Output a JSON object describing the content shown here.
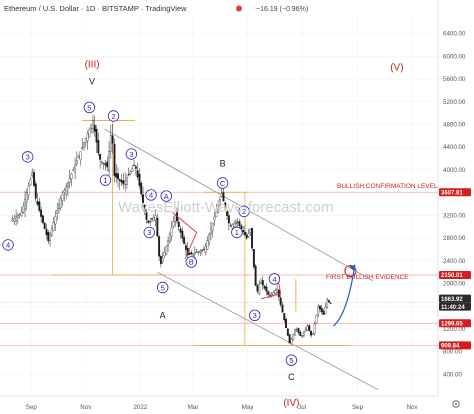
{
  "header": {
    "title": "Ethereum / U.S. Dollar · 1D · BITSTAMP · TradingView",
    "change": "−16.19 (−0.96%)"
  },
  "watermark": "WavesElliott-Wave-forecast.com",
  "colors": {
    "up": "#3a3a3a",
    "down": "#1a1a1a",
    "wave_blue": "#2a2aa8",
    "level_red": "#d41d1d",
    "channel": "#888888",
    "fib_orange": "#f0a33a",
    "arrow_blue": "#1e5fd6"
  },
  "chart_data": {
    "type": "candlestick",
    "title": "Ethereum / U.S. Dollar · 1D · BITSTAMP · TradingView",
    "y_axis_ticks": [
      6400,
      6000,
      5600,
      5200,
      4800,
      4400,
      4000,
      3600,
      3200,
      2800,
      2400,
      2000,
      1600,
      1200,
      800,
      400
    ],
    "x_axis_ticks": [
      "Sep",
      "Nov",
      "2022",
      "Mar",
      "May",
      "Jul",
      "Sep",
      "Nov"
    ],
    "ylim": [
      0,
      6700
    ],
    "price_labels": [
      {
        "value": "3607.81",
        "price": 3607.81,
        "style": "red-solid"
      },
      {
        "value": "2150.01",
        "price": 2150.01,
        "style": "red-solid"
      },
      {
        "value": "1663.92",
        "price": 1663.92,
        "style": "dark"
      },
      {
        "value": "11:40:24",
        "price": 1663.92,
        "style": "dark-time"
      },
      {
        "value": "1299.65",
        "price": 1299.65,
        "style": "red-solid"
      },
      {
        "value": "909.84",
        "price": 909.84,
        "style": "red-solid"
      }
    ],
    "levels": [
      {
        "label": "BULLISH CONFIRMATION LEVEL",
        "price": 3607.81
      },
      {
        "label": "FIRST BULLISH EVIDENCE",
        "price": 2150.01
      }
    ],
    "price_path": [
      {
        "date": "2021-08-10",
        "price": 3100
      },
      {
        "date": "2021-08-22",
        "price": 3250
      },
      {
        "date": "2021-09-03",
        "price": 3950
      },
      {
        "date": "2021-09-07",
        "price": 3500
      },
      {
        "date": "2021-09-21",
        "price": 2750
      },
      {
        "date": "2021-10-05",
        "price": 3500
      },
      {
        "date": "2021-10-15",
        "price": 3850
      },
      {
        "date": "2021-10-29",
        "price": 4400
      },
      {
        "date": "2021-11-10",
        "price": 4870
      },
      {
        "date": "2021-11-17",
        "price": 4200
      },
      {
        "date": "2021-11-26",
        "price": 4050
      },
      {
        "date": "2021-12-01",
        "price": 4750
      },
      {
        "date": "2021-12-04",
        "price": 3900
      },
      {
        "date": "2021-12-14",
        "price": 3750
      },
      {
        "date": "2021-12-27",
        "price": 4100
      },
      {
        "date": "2022-01-10",
        "price": 3050
      },
      {
        "date": "2022-01-19",
        "price": 3200
      },
      {
        "date": "2022-01-24",
        "price": 2300
      },
      {
        "date": "2022-02-01",
        "price": 2700
      },
      {
        "date": "2022-02-10",
        "price": 3200
      },
      {
        "date": "2022-02-24",
        "price": 2500
      },
      {
        "date": "2022-03-15",
        "price": 2600
      },
      {
        "date": "2022-04-03",
        "price": 3580
      },
      {
        "date": "2022-04-12",
        "price": 3000
      },
      {
        "date": "2022-04-20",
        "price": 3100
      },
      {
        "date": "2022-05-01",
        "price": 2800
      },
      {
        "date": "2022-05-05",
        "price": 2950
      },
      {
        "date": "2022-05-12",
        "price": 1800
      },
      {
        "date": "2022-05-16",
        "price": 2050
      },
      {
        "date": "2022-05-26",
        "price": 1780
      },
      {
        "date": "2022-06-04",
        "price": 1900
      },
      {
        "date": "2022-06-18",
        "price": 950
      },
      {
        "date": "2022-06-25",
        "price": 1220
      },
      {
        "date": "2022-07-01",
        "price": 1050
      },
      {
        "date": "2022-07-08",
        "price": 1250
      },
      {
        "date": "2022-07-13",
        "price": 1050
      },
      {
        "date": "2022-07-20",
        "price": 1600
      },
      {
        "date": "2022-07-26",
        "price": 1450
      },
      {
        "date": "2022-07-30",
        "price": 1720
      },
      {
        "date": "2022-08-02",
        "price": 1650
      }
    ],
    "wave_labels": [
      {
        "text": "(III)",
        "date": "2021-11-08",
        "price": 5800,
        "style": "red"
      },
      {
        "text": "V",
        "date": "2021-11-08",
        "price": 5500,
        "style": "black"
      },
      {
        "text": "5",
        "date": "2021-11-05",
        "price": 5100,
        "style": "circle"
      },
      {
        "text": "2",
        "date": "2021-12-02",
        "price": 4950,
        "style": "circle"
      },
      {
        "text": "3",
        "date": "2021-08-28",
        "price": 4230,
        "style": "circle"
      },
      {
        "text": "1",
        "date": "2021-11-23",
        "price": 3820,
        "style": "circle"
      },
      {
        "text": "3",
        "date": "2021-12-22",
        "price": 4280,
        "style": "circle"
      },
      {
        "text": "4",
        "date": "2021-08-06",
        "price": 2680,
        "style": "circle"
      },
      {
        "text": "4",
        "date": "2022-01-13",
        "price": 3560,
        "style": "circle"
      },
      {
        "text": "A",
        "date": "2022-01-30",
        "price": 3540,
        "style": "circle"
      },
      {
        "text": "3",
        "date": "2022-01-11",
        "price": 2900,
        "style": "circle"
      },
      {
        "text": "5",
        "date": "2022-01-26",
        "price": 1930,
        "style": "circle"
      },
      {
        "text": "A",
        "date": "2022-01-26",
        "price": 1380,
        "style": "black"
      },
      {
        "text": "B",
        "date": "2022-02-27",
        "price": 2380,
        "style": "circle"
      },
      {
        "text": "C",
        "date": "2022-04-03",
        "price": 3770,
        "style": "circle"
      },
      {
        "text": "B",
        "date": "2022-04-03",
        "price": 4060,
        "style": "black"
      },
      {
        "text": "2",
        "date": "2022-04-27",
        "price": 3270,
        "style": "circle"
      },
      {
        "text": "1",
        "date": "2022-04-19",
        "price": 2900,
        "style": "circle"
      },
      {
        "text": "4",
        "date": "2022-05-31",
        "price": 2080,
        "style": "circle"
      },
      {
        "text": "3",
        "date": "2022-05-09",
        "price": 1440,
        "style": "circle"
      },
      {
        "text": "5",
        "date": "2022-06-19",
        "price": 650,
        "style": "circle"
      },
      {
        "text": "C",
        "date": "2022-06-19",
        "price": 300,
        "style": "black"
      },
      {
        "text": "(IV)",
        "date": "2022-06-19",
        "price": -160,
        "style": "red"
      },
      {
        "text": "(V)",
        "date": "2022-10-15",
        "price": 5750,
        "style": "red"
      }
    ]
  }
}
